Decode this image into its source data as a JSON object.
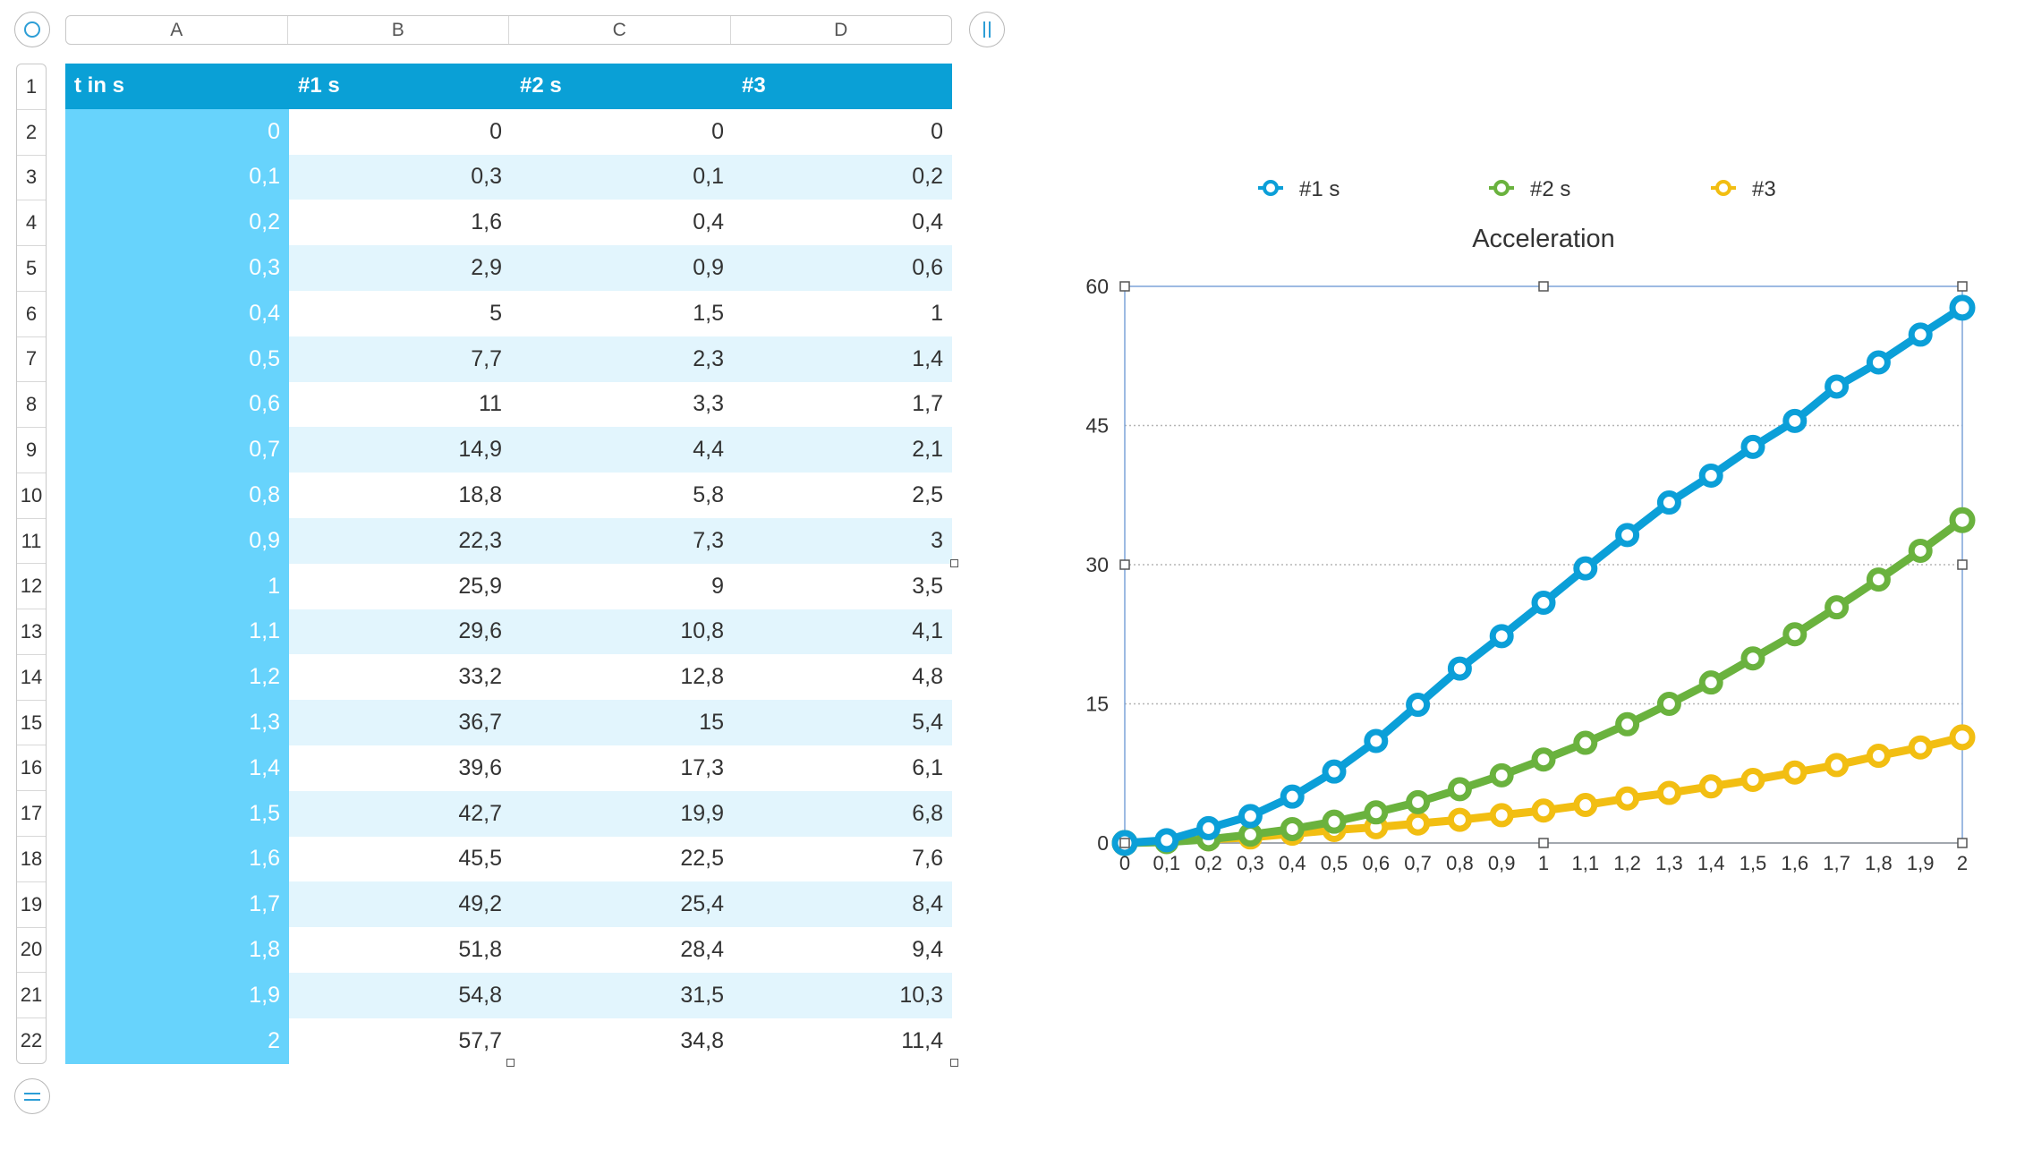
{
  "columns": [
    "A",
    "B",
    "C",
    "D"
  ],
  "rows": [
    "1",
    "2",
    "3",
    "4",
    "5",
    "6",
    "7",
    "8",
    "9",
    "10",
    "11",
    "12",
    "13",
    "14",
    "15",
    "16",
    "17",
    "18",
    "19",
    "20",
    "21",
    "22"
  ],
  "table": {
    "headers": [
      "t in s",
      "#1 s",
      "#2 s",
      "#3"
    ],
    "rows": [
      [
        "0",
        "0",
        "0",
        "0"
      ],
      [
        "0,1",
        "0,3",
        "0,1",
        "0,2"
      ],
      [
        "0,2",
        "1,6",
        "0,4",
        "0,4"
      ],
      [
        "0,3",
        "2,9",
        "0,9",
        "0,6"
      ],
      [
        "0,4",
        "5",
        "1,5",
        "1"
      ],
      [
        "0,5",
        "7,7",
        "2,3",
        "1,4"
      ],
      [
        "0,6",
        "11",
        "3,3",
        "1,7"
      ],
      [
        "0,7",
        "14,9",
        "4,4",
        "2,1"
      ],
      [
        "0,8",
        "18,8",
        "5,8",
        "2,5"
      ],
      [
        "0,9",
        "22,3",
        "7,3",
        "3"
      ],
      [
        "1",
        "25,9",
        "9",
        "3,5"
      ],
      [
        "1,1",
        "29,6",
        "10,8",
        "4,1"
      ],
      [
        "1,2",
        "33,2",
        "12,8",
        "4,8"
      ],
      [
        "1,3",
        "36,7",
        "15",
        "5,4"
      ],
      [
        "1,4",
        "39,6",
        "17,3",
        "6,1"
      ],
      [
        "1,5",
        "42,7",
        "19,9",
        "6,8"
      ],
      [
        "1,6",
        "45,5",
        "22,5",
        "7,6"
      ],
      [
        "1,7",
        "49,2",
        "25,4",
        "8,4"
      ],
      [
        "1,8",
        "51,8",
        "28,4",
        "9,4"
      ],
      [
        "1,9",
        "54,8",
        "31,5",
        "10,3"
      ],
      [
        "2",
        "57,7",
        "34,8",
        "11,4"
      ]
    ]
  },
  "chart_data": {
    "type": "line",
    "title": "Acceleration",
    "xlabel": "",
    "ylabel": "",
    "categories": [
      "0",
      "0,1",
      "0,2",
      "0,3",
      "0,4",
      "0,5",
      "0,6",
      "0,7",
      "0,8",
      "0,9",
      "1",
      "1,1",
      "1,2",
      "1,3",
      "1,4",
      "1,5",
      "1,6",
      "1,7",
      "1,8",
      "1,9",
      "2"
    ],
    "ylim": [
      0,
      60
    ],
    "yticks": [
      0,
      15,
      30,
      45,
      60
    ],
    "grid": true,
    "legend_position": "top",
    "series": [
      {
        "name": "#1 s",
        "color": "#0b9fd8",
        "values": [
          0,
          0.3,
          1.6,
          2.9,
          5,
          7.7,
          11,
          14.9,
          18.8,
          22.3,
          25.9,
          29.6,
          33.2,
          36.7,
          39.6,
          42.7,
          45.5,
          49.2,
          51.8,
          54.8,
          57.7
        ]
      },
      {
        "name": "#2 s",
        "color": "#6ab23e",
        "values": [
          0,
          0.1,
          0.4,
          0.9,
          1.5,
          2.3,
          3.3,
          4.4,
          5.8,
          7.3,
          9,
          10.8,
          12.8,
          15,
          17.3,
          19.9,
          22.5,
          25.4,
          28.4,
          31.5,
          34.8
        ]
      },
      {
        "name": "#3",
        "color": "#f2be12",
        "values": [
          0,
          0.2,
          0.4,
          0.6,
          1,
          1.4,
          1.7,
          2.1,
          2.5,
          3,
          3.5,
          4.1,
          4.8,
          5.4,
          6.1,
          6.8,
          7.6,
          8.4,
          9.4,
          10.3,
          11.4
        ]
      }
    ]
  }
}
